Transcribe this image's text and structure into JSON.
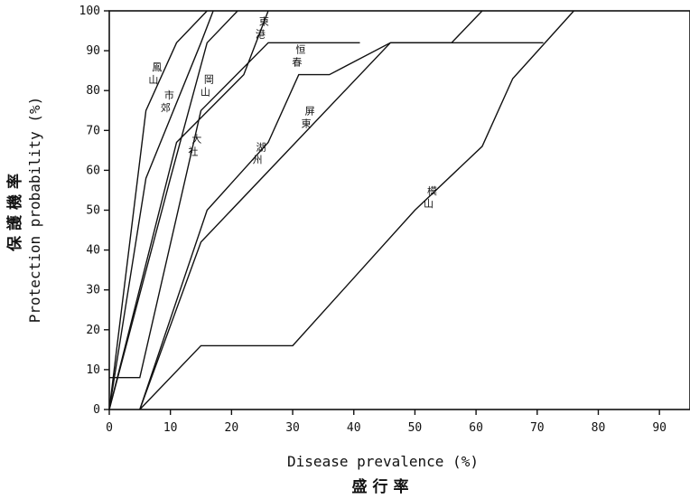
{
  "chart_data": {
    "type": "line",
    "xlabel": "Disease prevalence (%)",
    "xlabel_zh": "盛行率",
    "ylabel": "Protection probability (%)",
    "ylabel_zh": "保護機率",
    "xlim": [
      0,
      95
    ],
    "ylim": [
      0,
      100
    ],
    "xticks": [
      0,
      10,
      20,
      30,
      40,
      50,
      60,
      70,
      80,
      90
    ],
    "yticks": [
      0,
      10,
      20,
      30,
      40,
      50,
      60,
      70,
      80,
      90,
      100
    ],
    "grid": false,
    "series": [
      {
        "name": "鳳山",
        "label_chars": [
          "鳳",
          "山"
        ],
        "x": [
          0,
          6,
          11,
          16
        ],
        "y": [
          0,
          75,
          92,
          100
        ]
      },
      {
        "name": "市郊",
        "label_chars": [
          "市",
          "郊"
        ],
        "x": [
          0,
          6,
          15,
          17
        ],
        "y": [
          0,
          58,
          92,
          100
        ]
      },
      {
        "name": "大社",
        "label_chars": [
          "大",
          "社"
        ],
        "x": [
          0,
          10,
          16,
          21
        ],
        "y": [
          0,
          58,
          92,
          100
        ]
      },
      {
        "name": "岡山",
        "label_chars": [
          "岡",
          "山"
        ],
        "x": [
          0,
          11,
          22,
          26
        ],
        "y": [
          0,
          67,
          84,
          100
        ]
      },
      {
        "name": "東港",
        "label_chars": [
          "東",
          "港"
        ],
        "x": [
          0,
          5,
          15,
          26,
          41
        ],
        "y": [
          8,
          8,
          75,
          92,
          92
        ]
      },
      {
        "name": "恒春",
        "label_chars": [
          "恒",
          "春"
        ],
        "x": [
          5,
          16,
          26,
          31,
          36,
          46,
          56,
          61
        ],
        "y": [
          0,
          50,
          67,
          84,
          84,
          92,
          92,
          100
        ]
      },
      {
        "name": "湖州",
        "label_chars": [
          "湖",
          "州"
        ],
        "x": [
          5,
          15,
          46,
          71
        ],
        "y": [
          0,
          42,
          92,
          92
        ]
      },
      {
        "name": "屏東",
        "label_chars": [
          "屏",
          "東"
        ],
        "x": [
          5,
          15,
          30,
          50,
          61,
          66,
          76
        ],
        "y": [
          0,
          16,
          16,
          50,
          66,
          83,
          100
        ]
      }
    ],
    "annotations": [
      {
        "text": [
          "鳳",
          "山"
        ],
        "x": 7,
        "y": 85
      },
      {
        "text": [
          "市",
          "郊"
        ],
        "x": 9,
        "y": 78
      },
      {
        "text": [
          "東",
          "港"
        ],
        "x": 24.5,
        "y": 96.5
      },
      {
        "text": [
          "岡",
          "山"
        ],
        "x": 15.5,
        "y": 82
      },
      {
        "text": [
          "恒",
          "春"
        ],
        "x": 30.5,
        "y": 89.5
      },
      {
        "text": [
          "大",
          "社"
        ],
        "x": 13.5,
        "y": 67
      },
      {
        "text": [
          "湖",
          "州"
        ],
        "x": 24,
        "y": 65
      },
      {
        "text": [
          "屏",
          "東"
        ],
        "x": 32,
        "y": 74
      },
      {
        "text": [
          "模",
          "山"
        ],
        "x": 52,
        "y": 54
      }
    ]
  }
}
